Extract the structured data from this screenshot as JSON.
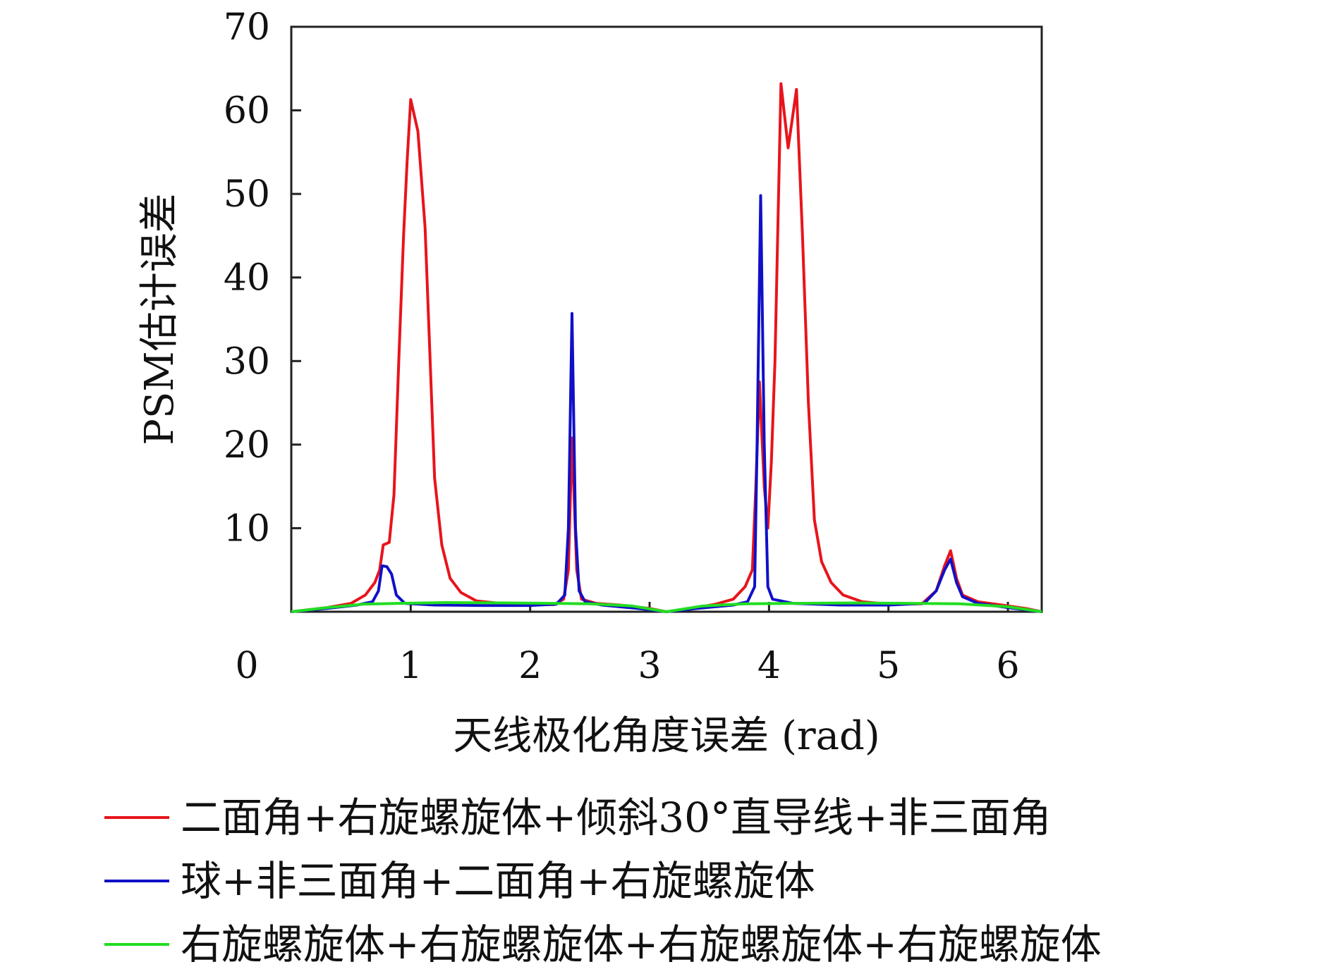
{
  "chart_data": {
    "type": "line",
    "title": "",
    "xlabel": "天线极化角度误差 (rad)",
    "ylabel": "PSM估计误差",
    "xlim": [
      0,
      6.2832
    ],
    "ylim": [
      0,
      70
    ],
    "x_ticks": [
      "0",
      "1",
      "2",
      "3",
      "4",
      "5",
      "6"
    ],
    "y_ticks": [
      "10",
      "20",
      "30",
      "40",
      "50",
      "60",
      "70"
    ],
    "grid": false,
    "legend_position": "bottom",
    "series": [
      {
        "name": "二面角+右旋螺旋体+倾斜30°直导线+非三面角",
        "color": "#e8141b",
        "points": [
          [
            0,
            0
          ],
          [
            0.3,
            0.5
          ],
          [
            0.5,
            1.0
          ],
          [
            0.62,
            2.0
          ],
          [
            0.7,
            3.5
          ],
          [
            0.74,
            5.0
          ],
          [
            0.77,
            8.0
          ],
          [
            0.82,
            8.3
          ],
          [
            0.86,
            14
          ],
          [
            0.9,
            30
          ],
          [
            0.94,
            45
          ],
          [
            0.97,
            54
          ],
          [
            1.0,
            61.3
          ],
          [
            1.06,
            57.5
          ],
          [
            1.12,
            46
          ],
          [
            1.2,
            16
          ],
          [
            1.26,
            8
          ],
          [
            1.33,
            4
          ],
          [
            1.42,
            2.3
          ],
          [
            1.55,
            1.3
          ],
          [
            1.75,
            1.0
          ],
          [
            2.0,
            0.9
          ],
          [
            2.2,
            0.85
          ],
          [
            2.28,
            1.5
          ],
          [
            2.32,
            5
          ],
          [
            2.35,
            20.8
          ],
          [
            2.39,
            5
          ],
          [
            2.43,
            1.5
          ],
          [
            2.55,
            1.0
          ],
          [
            2.75,
            0.8
          ],
          [
            3.0,
            0.4
          ],
          [
            3.14,
            0
          ],
          [
            3.35,
            0.4
          ],
          [
            3.55,
            0.9
          ],
          [
            3.7,
            1.5
          ],
          [
            3.8,
            3
          ],
          [
            3.86,
            5
          ],
          [
            3.89,
            15
          ],
          [
            3.92,
            27.5
          ],
          [
            3.96,
            15
          ],
          [
            3.99,
            10
          ],
          [
            4.02,
            18
          ],
          [
            4.05,
            30
          ],
          [
            4.1,
            63.2
          ],
          [
            4.16,
            55.5
          ],
          [
            4.23,
            62.5
          ],
          [
            4.28,
            45
          ],
          [
            4.33,
            25
          ],
          [
            4.38,
            11
          ],
          [
            4.44,
            6
          ],
          [
            4.52,
            3.5
          ],
          [
            4.62,
            2
          ],
          [
            4.78,
            1.2
          ],
          [
            5.0,
            0.9
          ],
          [
            5.28,
            0.95
          ],
          [
            5.4,
            2.5
          ],
          [
            5.47,
            5.5
          ],
          [
            5.52,
            7.3
          ],
          [
            5.57,
            4
          ],
          [
            5.62,
            2
          ],
          [
            5.75,
            1.2
          ],
          [
            5.95,
            0.8
          ],
          [
            6.15,
            0.4
          ],
          [
            6.2832,
            0
          ]
        ]
      },
      {
        "name": "球+非三面角+二面角+右旋螺旋体",
        "color": "#1010c8",
        "points": [
          [
            0,
            0
          ],
          [
            0.3,
            0.4
          ],
          [
            0.55,
            0.8
          ],
          [
            0.68,
            1.2
          ],
          [
            0.73,
            2.5
          ],
          [
            0.76,
            5.5
          ],
          [
            0.8,
            5.4
          ],
          [
            0.84,
            4.5
          ],
          [
            0.88,
            2
          ],
          [
            0.95,
            1.0
          ],
          [
            1.2,
            0.8
          ],
          [
            1.6,
            0.75
          ],
          [
            2.0,
            0.75
          ],
          [
            2.22,
            0.9
          ],
          [
            2.29,
            2
          ],
          [
            2.32,
            10
          ],
          [
            2.35,
            35.7
          ],
          [
            2.38,
            10
          ],
          [
            2.41,
            2.5
          ],
          [
            2.46,
            1.2
          ],
          [
            2.6,
            0.8
          ],
          [
            2.9,
            0.4
          ],
          [
            3.14,
            0
          ],
          [
            3.4,
            0.4
          ],
          [
            3.7,
            0.8
          ],
          [
            3.82,
            1.2
          ],
          [
            3.88,
            3
          ],
          [
            3.9,
            20
          ],
          [
            3.93,
            49.8
          ],
          [
            3.96,
            20
          ],
          [
            3.99,
            3
          ],
          [
            4.03,
            1.5
          ],
          [
            4.2,
            1.0
          ],
          [
            4.6,
            0.8
          ],
          [
            5.0,
            0.8
          ],
          [
            5.3,
            1.0
          ],
          [
            5.4,
            2.5
          ],
          [
            5.47,
            5
          ],
          [
            5.52,
            6.3
          ],
          [
            5.57,
            3.5
          ],
          [
            5.62,
            1.8
          ],
          [
            5.75,
            1.0
          ],
          [
            6.0,
            0.5
          ],
          [
            6.2832,
            0
          ]
        ]
      },
      {
        "name": "右旋螺旋体+右旋螺旋体+右旋螺旋体+右旋螺旋体",
        "color": "#22dd22",
        "points": [
          [
            0,
            0
          ],
          [
            0.3,
            0.5
          ],
          [
            0.6,
            0.9
          ],
          [
            0.9,
            1.0
          ],
          [
            1.3,
            1.1
          ],
          [
            1.8,
            1.05
          ],
          [
            2.2,
            1.0
          ],
          [
            2.5,
            0.95
          ],
          [
            2.85,
            0.7
          ],
          [
            3.14,
            0
          ],
          [
            3.45,
            0.7
          ],
          [
            3.8,
            0.95
          ],
          [
            4.2,
            1.0
          ],
          [
            4.7,
            1.05
          ],
          [
            5.2,
            1.0
          ],
          [
            5.6,
            0.95
          ],
          [
            6.0,
            0.6
          ],
          [
            6.2832,
            0
          ]
        ]
      }
    ]
  }
}
